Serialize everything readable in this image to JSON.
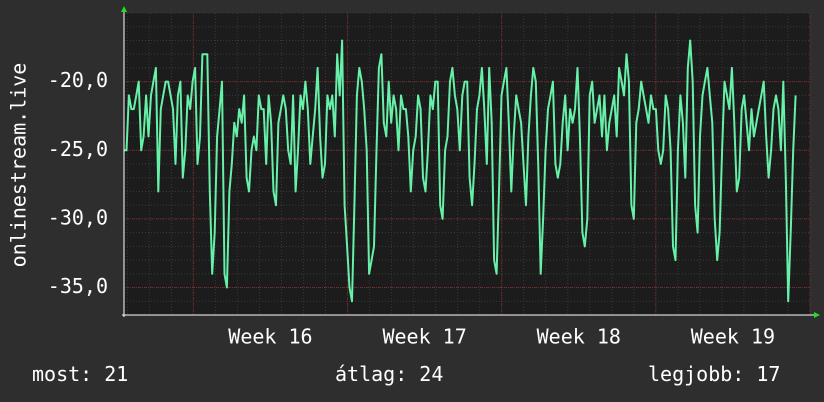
{
  "chart_data": {
    "type": "line",
    "ylabel": "onlinestream.live",
    "ylim": [
      -37,
      -15
    ],
    "y_ticks": [
      -20,
      -25,
      -30,
      -35
    ],
    "y_tick_labels": [
      "-20,0",
      "-25,0",
      "-30,0",
      "-35,0"
    ],
    "x_tick_labels": [
      "Week 16",
      "Week 17",
      "Week 18",
      "Week 19"
    ],
    "x_range_weeks": [
      15.55,
      20.0
    ],
    "grid": true,
    "line_color": "#66f0a8",
    "series": [
      {
        "week_start": 15.55,
        "week_step": 0.0159,
        "values": [
          -25,
          -25,
          -21,
          -22,
          -22,
          -21,
          -20,
          -25,
          -24,
          -21,
          -24,
          -21,
          -20,
          -19,
          -28,
          -22,
          -21,
          -20,
          -20,
          -21,
          -22,
          -26,
          -21,
          -20,
          -27,
          -25,
          -21,
          -22,
          -20,
          -19,
          -26,
          -24,
          -18,
          -18,
          -18,
          -28,
          -34,
          -31,
          -24,
          -22,
          -20,
          -34,
          -35,
          -28,
          -26,
          -23,
          -24,
          -22,
          -23,
          -21,
          -27,
          -28,
          -25,
          -24,
          -25,
          -21,
          -22,
          -22,
          -26,
          -21,
          -23,
          -28,
          -29,
          -23,
          -22,
          -21,
          -22,
          -25,
          -26,
          -21,
          -28,
          -25,
          -21,
          -22,
          -20,
          -22,
          -26,
          -24,
          -22,
          -19,
          -24,
          -27,
          -26,
          -21,
          -22,
          -21,
          -24,
          -18,
          -21,
          -17,
          -29,
          -32,
          -35,
          -36,
          -29,
          -21,
          -19,
          -20,
          -22,
          -25,
          -34,
          -33,
          -32,
          -25,
          -19,
          -18,
          -23,
          -24,
          -20,
          -23,
          -21,
          -22,
          -25,
          -21,
          -22,
          -22,
          -24,
          -28,
          -25,
          -24,
          -21,
          -22,
          -27,
          -28,
          -25,
          -21,
          -22,
          -20,
          -20,
          -29,
          -30,
          -25,
          -24,
          -20,
          -19,
          -21,
          -22,
          -25,
          -21,
          -20,
          -20,
          -27,
          -29,
          -26,
          -22,
          -21,
          -19,
          -22,
          -26,
          -19,
          -23,
          -33,
          -34,
          -28,
          -21,
          -20,
          -19,
          -23,
          -28,
          -24,
          -21,
          -22,
          -23,
          -26,
          -29,
          -24,
          -21,
          -19,
          -20,
          -26,
          -34,
          -30,
          -25,
          -22,
          -21,
          -20,
          -26,
          -27,
          -26,
          -23,
          -21,
          -25,
          -22,
          -23,
          -22,
          -19,
          -24,
          -31,
          -32,
          -30,
          -21,
          -20,
          -23,
          -22,
          -21,
          -24,
          -21,
          -25,
          -23,
          -22,
          -21,
          -24,
          -19,
          -20,
          -21,
          -18,
          -20,
          -29,
          -30,
          -23,
          -22,
          -20,
          -21,
          -22,
          -23,
          -21,
          -22,
          -22,
          -25,
          -26,
          -25,
          -21,
          -22,
          -25,
          -32,
          -33,
          -25,
          -21,
          -23,
          -27,
          -19,
          -17,
          -20,
          -29,
          -31,
          -24,
          -21,
          -20,
          -19,
          -21,
          -23,
          -30,
          -33,
          -31,
          -25,
          -20,
          -21,
          -22,
          -19,
          -23,
          -28,
          -27,
          -22,
          -21,
          -23,
          -25,
          -22,
          -24,
          -23,
          -22,
          -21,
          -20,
          -24,
          -27,
          -25,
          -22,
          -21,
          -22,
          -25,
          -20,
          -27,
          -36,
          -31,
          -25,
          -21
        ]
      }
    ]
  },
  "legend": {
    "last_label": "most:",
    "last_value": "21",
    "avg_label": "átlag:",
    "avg_value": "24",
    "best_label": "legjobb:",
    "best_value": "17"
  }
}
